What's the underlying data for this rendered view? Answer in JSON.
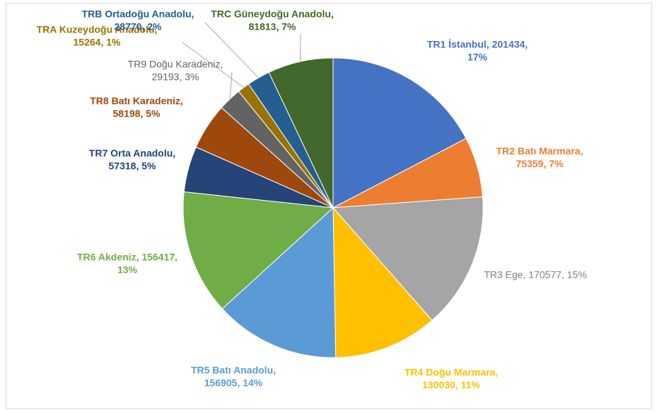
{
  "chart_data": {
    "type": "pie",
    "values": [
      201434,
      75359,
      170577,
      130030,
      156905,
      156417,
      57318,
      58198,
      29193,
      15264,
      28770,
      81813
    ],
    "value_labels": [
      [
        "TR1 İstanbul, 201434,",
        "17%"
      ],
      [
        "TR2 Batı Marmara,",
        "75359, 7%"
      ],
      [
        "TR3 Ege, 170577, 15%"
      ],
      [
        "TR4 Doğu Marmara,",
        "130030, 11%"
      ],
      [
        "TR5 Batı Anadolu,",
        "156905, 14%"
      ],
      [
        "TR6 Akdeniz, 156417,",
        "13%"
      ],
      [
        "TR7 Orta Anadolu,",
        "57318, 5%"
      ],
      [
        "TR8 Batı Karadeniz,",
        "58198, 5%"
      ],
      [
        "TR9 Doğu Karadeniz,",
        "29193, 3%"
      ],
      [
        "TRA Kuzeydoğu Anadolu,",
        "15264, 1%"
      ],
      [
        "TRB Ortadoğu Anadolu,",
        "28770, 2%"
      ],
      [
        "TRC Güneydoğu Anadolu,",
        "81813, 7%"
      ]
    ],
    "colors": [
      "#4472c4",
      "#ed7d31",
      "#a5a5a5",
      "#ffc000",
      "#5b9bd5",
      "#70ad47",
      "#264478",
      "#9e480e",
      "#636363",
      "#997300",
      "#255e91",
      "#43682b"
    ]
  }
}
